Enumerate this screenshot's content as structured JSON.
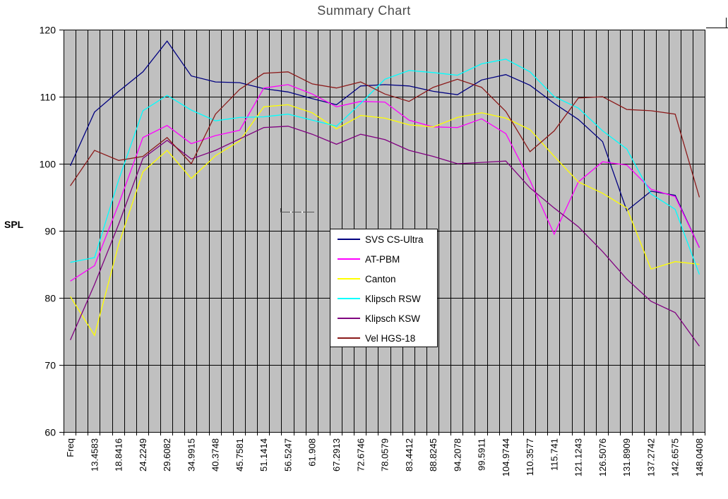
{
  "chart": {
    "title": "Summary Chart",
    "ylabel": "SPL"
  },
  "chart_data": {
    "type": "line",
    "title": "Summary Chart",
    "xlabel": "",
    "ylabel": "SPL",
    "ylim": [
      60,
      120
    ],
    "yticks": [
      120,
      110,
      100,
      90,
      80,
      70,
      60
    ],
    "grid": "dense-vertical-and-horizontal",
    "plot_bg": "#C0C0C0",
    "legend_position": "center",
    "categories": [
      "Freq",
      "13.4583",
      "18.8416",
      "24.2249",
      "29.6082",
      "34.9915",
      "40.3748",
      "45.7581",
      "51.1414",
      "56.5247",
      "61.908",
      "67.2913",
      "72.6746",
      "78.0579",
      "83.4412",
      "88.8245",
      "94.2078",
      "99.5911",
      "104.9744",
      "110.3577",
      "115.741",
      "121.1243",
      "126.5076",
      "131.8909",
      "137.2742",
      "142.6575",
      "148.0408"
    ],
    "series": [
      {
        "name": "SVS CS-Ultra",
        "color": "#000080",
        "values": [
          99.7,
          107.7,
          110.8,
          113.7,
          118.3,
          113.1,
          112.2,
          112.1,
          111.2,
          110.7,
          109.7,
          108.8,
          111.6,
          111.8,
          111.6,
          110.8,
          110.3,
          112.5,
          113.3,
          111.7,
          109.0,
          106.6,
          103.3,
          93.0,
          95.9,
          95.3,
          87.5
        ]
      },
      {
        "name": "AT-PBM",
        "color": "#FF00FF",
        "values": [
          82.5,
          84.8,
          94.0,
          103.9,
          105.7,
          103.0,
          104.2,
          105.0,
          111.3,
          111.8,
          110.4,
          108.5,
          109.3,
          109.2,
          106.5,
          105.5,
          105.4,
          106.7,
          104.5,
          97.5,
          89.5,
          97.3,
          100.3,
          99.8,
          96.2,
          95.1,
          87.5
        ]
      },
      {
        "name": "Canton",
        "color": "#FFFF00",
        "values": [
          80.2,
          74.4,
          88.0,
          98.8,
          102.0,
          97.8,
          101.2,
          103.4,
          108.5,
          108.8,
          107.6,
          105.2,
          107.2,
          106.8,
          105.8,
          105.5,
          106.9,
          107.6,
          106.8,
          105.1,
          101.1,
          97.3,
          95.6,
          93.4,
          84.3,
          85.4,
          85.0
        ]
      },
      {
        "name": "Klipsch RSW",
        "color": "#00FFFF",
        "values": [
          85.3,
          86.0,
          97.6,
          107.9,
          110.2,
          108.0,
          106.4,
          106.9,
          107.0,
          107.4,
          106.5,
          105.6,
          109.0,
          112.6,
          113.9,
          113.6,
          113.2,
          114.9,
          115.6,
          113.7,
          110.0,
          108.3,
          104.9,
          102.2,
          95.5,
          93.2,
          83.5
        ]
      },
      {
        "name": "Klipsch KSW",
        "color": "#800080",
        "values": [
          73.7,
          82.0,
          91.0,
          100.8,
          103.5,
          100.7,
          102.0,
          103.7,
          105.4,
          105.6,
          104.4,
          102.9,
          104.4,
          103.6,
          102.0,
          101.1,
          100.0,
          100.2,
          100.4,
          96.4,
          93.4,
          90.6,
          86.9,
          82.8,
          79.5,
          77.8,
          72.8
        ]
      },
      {
        "name": "Vel HGS-18",
        "color": "#8B1A1A",
        "values": [
          96.7,
          102.0,
          100.5,
          101.1,
          103.9,
          100.0,
          107.4,
          111.1,
          113.5,
          113.7,
          111.9,
          111.3,
          112.2,
          110.4,
          109.3,
          111.4,
          112.6,
          111.4,
          107.8,
          101.8,
          104.9,
          109.8,
          110.0,
          108.1,
          107.9,
          107.4,
          95.0
        ]
      }
    ]
  }
}
